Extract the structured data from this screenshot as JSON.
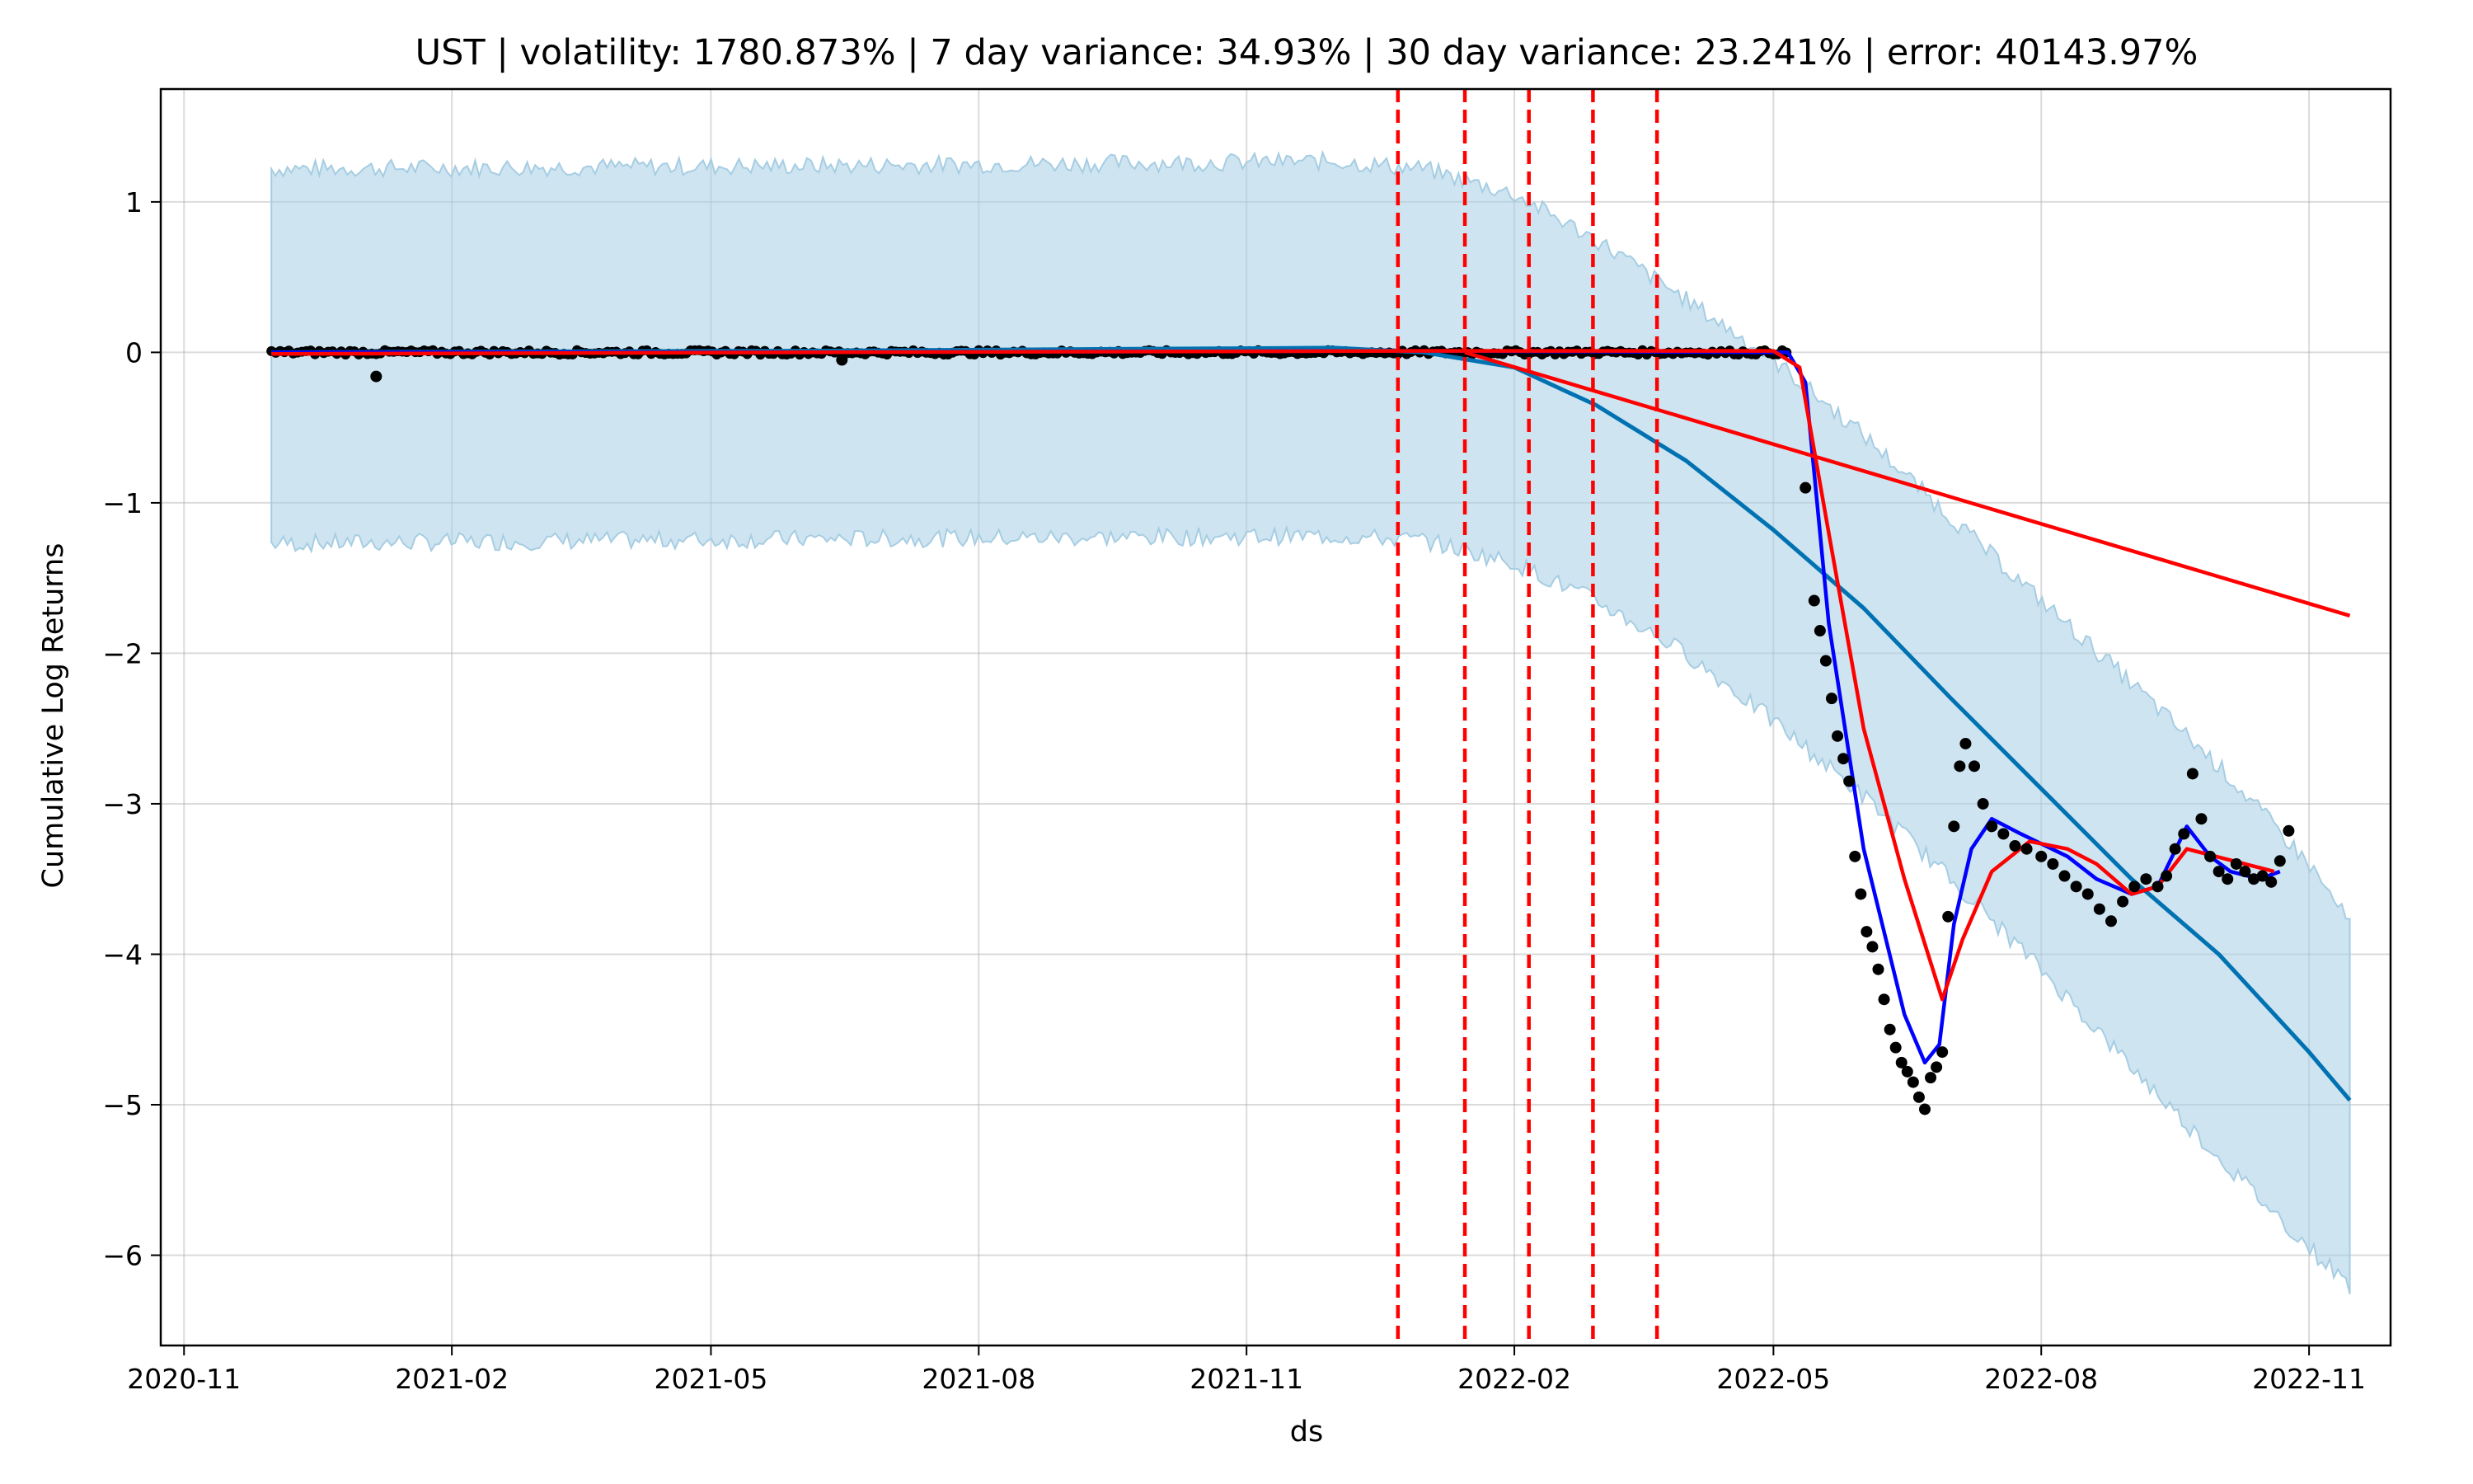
{
  "chart_data": {
    "type": "line",
    "title": "UST | volatility: 1780.873% | 7 day variance: 34.93% | 30 day variance: 23.241% | error: 40143.97%",
    "xlabel": "ds",
    "ylabel": "Cumulative Log Returns",
    "xlim": [
      "2020-10-24",
      "2022-11-29"
    ],
    "ylim": [
      -6.6,
      1.75
    ],
    "grid": true,
    "x_ticks": [
      "2020-11",
      "2021-02",
      "2021-05",
      "2021-08",
      "2021-11",
      "2022-02",
      "2022-05",
      "2022-08",
      "2022-11"
    ],
    "y_ticks": [
      1,
      0,
      -1,
      -2,
      -3,
      -4,
      -5,
      -6
    ],
    "colors": {
      "band": "#a6cde3",
      "forecast": "#0072b2",
      "fit_blue": "#0000ff",
      "fit_red": "#ff0000",
      "changepoint": "#ff0000",
      "points": "#000000"
    },
    "changepoints": [
      "2021-12-23",
      "2022-01-15",
      "2022-02-06",
      "2022-02-28",
      "2022-03-22"
    ],
    "forecast": {
      "x": [
        "2020-12-01",
        "2021-06-01",
        "2021-12-01",
        "2022-01-01",
        "2022-02-01",
        "2022-03-01",
        "2022-04-01",
        "2022-05-01",
        "2022-06-01",
        "2022-07-01",
        "2022-08-01",
        "2022-09-01",
        "2022-10-01",
        "2022-11-01",
        "2022-11-15"
      ],
      "y": [
        0.0,
        0.01,
        0.03,
        0.0,
        -0.1,
        -0.35,
        -0.72,
        -1.18,
        -1.7,
        -2.3,
        -2.9,
        -3.5,
        -4.0,
        -4.65,
        -4.97
      ]
    },
    "band": {
      "x": [
        "2020-12-01",
        "2021-06-01",
        "2021-12-01",
        "2022-01-01",
        "2022-02-01",
        "2022-03-01",
        "2022-04-01",
        "2022-05-01",
        "2022-06-01",
        "2022-07-01",
        "2022-08-01",
        "2022-09-01",
        "2022-10-01",
        "2022-11-01",
        "2022-11-15"
      ],
      "upper": [
        1.22,
        1.24,
        1.27,
        1.22,
        1.05,
        0.75,
        0.35,
        -0.05,
        -0.55,
        -1.1,
        -1.65,
        -2.2,
        -2.75,
        -3.4,
        -3.8
      ],
      "lower": [
        -1.27,
        -1.24,
        -1.22,
        -1.25,
        -1.4,
        -1.65,
        -2.0,
        -2.45,
        -2.95,
        -3.5,
        -4.1,
        -4.75,
        -5.35,
        -5.95,
        -6.2
      ]
    },
    "fit_red": {
      "x": [
        "2020-12-01",
        "2021-06-01",
        "2022-01-01",
        "2022-05-01",
        "2022-05-10",
        "2022-05-20",
        "2022-06-01",
        "2022-06-15",
        "2022-06-28",
        "2022-07-05",
        "2022-07-15",
        "2022-07-28",
        "2022-08-10",
        "2022-08-20",
        "2022-09-01",
        "2022-09-10",
        "2022-09-20",
        "2022-09-30",
        "2022-10-10",
        "2022-10-20"
      ],
      "y": [
        -0.01,
        0.0,
        0.01,
        0.01,
        -0.1,
        -1.2,
        -2.5,
        -3.5,
        -4.3,
        -3.9,
        -3.45,
        -3.25,
        -3.3,
        -3.4,
        -3.6,
        -3.55,
        -3.3,
        -3.35,
        -3.4,
        -3.45
      ]
    },
    "fit_red_trend": {
      "x": [
        "2022-01-15",
        "2022-11-15"
      ],
      "y": [
        0.0,
        -1.75
      ]
    },
    "fit_blue": {
      "x": [
        "2020-12-01",
        "2021-06-01",
        "2022-01-01",
        "2022-05-06",
        "2022-05-12",
        "2022-05-20",
        "2022-06-01",
        "2022-06-15",
        "2022-06-22",
        "2022-06-27",
        "2022-07-02",
        "2022-07-08",
        "2022-07-15",
        "2022-07-25",
        "2022-08-10",
        "2022-08-20",
        "2022-09-01",
        "2022-09-10",
        "2022-09-20",
        "2022-09-28",
        "2022-10-05",
        "2022-10-15",
        "2022-10-22"
      ],
      "y": [
        0.0,
        0.0,
        0.01,
        0.0,
        -0.2,
        -1.8,
        -3.3,
        -4.4,
        -4.72,
        -4.6,
        -3.8,
        -3.3,
        -3.1,
        -3.2,
        -3.35,
        -3.5,
        -3.6,
        -3.55,
        -3.15,
        -3.35,
        -3.45,
        -3.5,
        -3.45
      ]
    },
    "points": {
      "x": [
        "2021-01-06",
        "2021-06-15",
        "2022-05-12",
        "2022-05-15",
        "2022-05-17",
        "2022-05-19",
        "2022-05-21",
        "2022-05-23",
        "2022-05-25",
        "2022-05-27",
        "2022-05-29",
        "2022-05-31",
        "2022-06-02",
        "2022-06-04",
        "2022-06-06",
        "2022-06-08",
        "2022-06-10",
        "2022-06-12",
        "2022-06-14",
        "2022-06-16",
        "2022-06-18",
        "2022-06-20",
        "2022-06-22",
        "2022-06-24",
        "2022-06-26",
        "2022-06-28",
        "2022-06-30",
        "2022-07-02",
        "2022-07-04",
        "2022-07-06",
        "2022-07-09",
        "2022-07-12",
        "2022-07-15",
        "2022-07-19",
        "2022-07-23",
        "2022-07-27",
        "2022-08-01",
        "2022-08-05",
        "2022-08-09",
        "2022-08-13",
        "2022-08-17",
        "2022-08-21",
        "2022-08-25",
        "2022-08-29",
        "2022-09-02",
        "2022-09-06",
        "2022-09-10",
        "2022-09-13",
        "2022-09-16",
        "2022-09-19",
        "2022-09-22",
        "2022-09-25",
        "2022-09-28",
        "2022-10-01",
        "2022-10-04",
        "2022-10-07",
        "2022-10-10",
        "2022-10-13",
        "2022-10-16",
        "2022-10-19",
        "2022-10-22",
        "2022-10-25"
      ],
      "y": [
        -0.16,
        -0.05,
        -0.9,
        -1.65,
        -1.85,
        -2.05,
        -2.3,
        -2.55,
        -2.7,
        -2.85,
        -3.35,
        -3.6,
        -3.85,
        -3.95,
        -4.1,
        -4.3,
        -4.5,
        -4.62,
        -4.72,
        -4.78,
        -4.85,
        -4.95,
        -5.03,
        -4.82,
        -4.75,
        -4.65,
        -3.75,
        -3.15,
        -2.75,
        -2.6,
        -2.75,
        -3.0,
        -3.15,
        -3.2,
        -3.28,
        -3.3,
        -3.35,
        -3.4,
        -3.48,
        -3.55,
        -3.6,
        -3.7,
        -3.78,
        -3.65,
        -3.55,
        -3.5,
        -3.55,
        -3.48,
        -3.3,
        -3.2,
        -2.8,
        -3.1,
        -3.35,
        -3.45,
        -3.5,
        -3.4,
        -3.45,
        -3.5,
        -3.48,
        -3.52,
        -3.38,
        -3.18
      ]
    },
    "history_dense": {
      "x_start": "2020-12-01",
      "x_end": "2022-05-06",
      "y": 0.0
    }
  }
}
